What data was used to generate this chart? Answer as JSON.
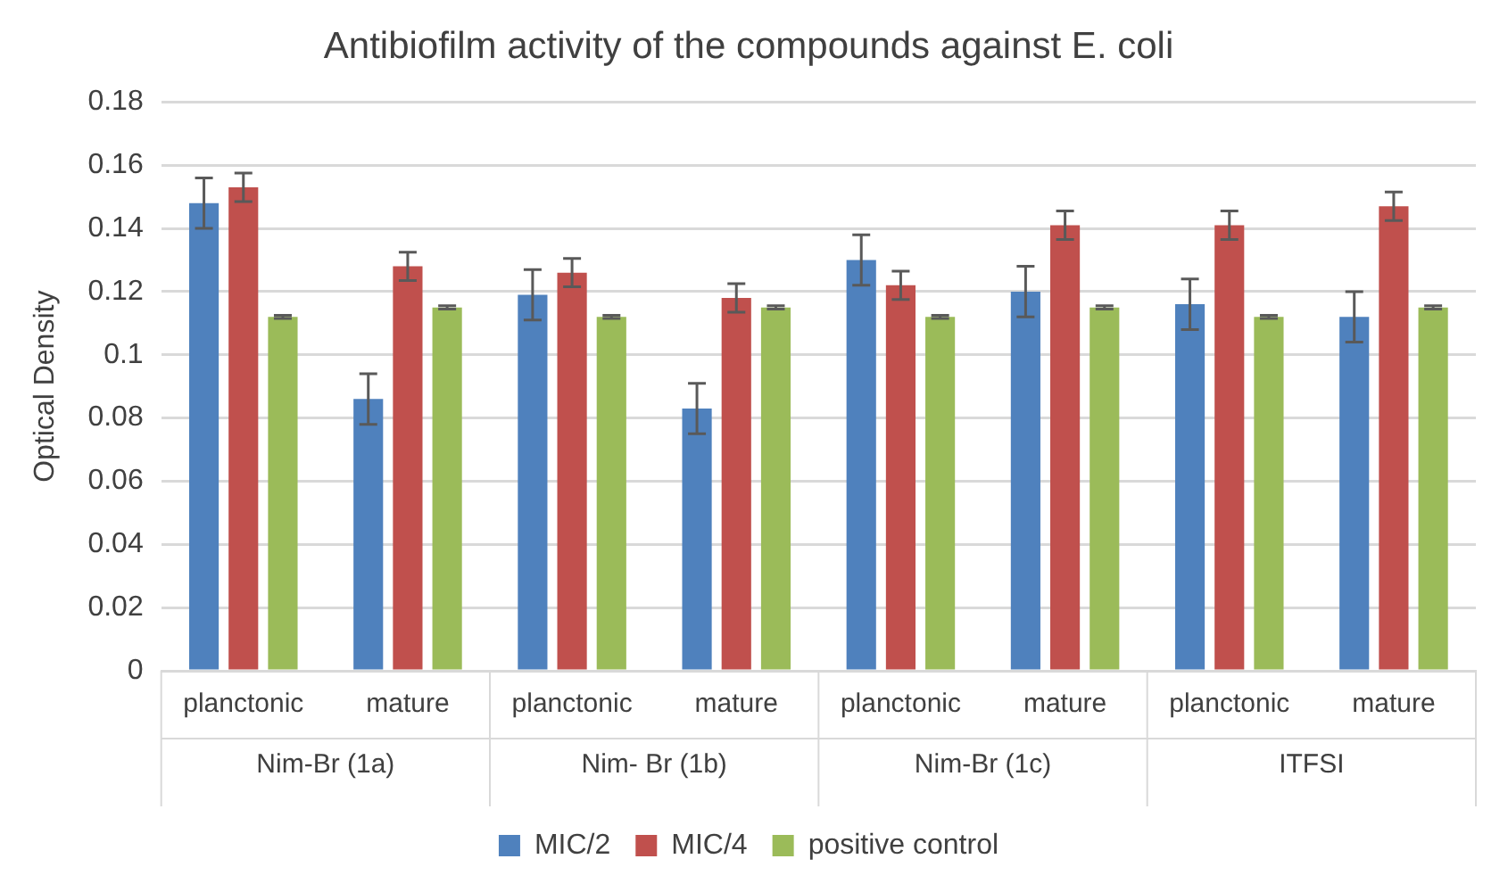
{
  "chart_data": {
    "type": "bar",
    "title": "Antibiofilm activity of the compounds against E. coli",
    "ylabel": "Optical Density",
    "categories": [
      "planctonic",
      "mature",
      "planctonic",
      "mature",
      "planctonic",
      "mature",
      "planctonic",
      "mature"
    ],
    "annotations": [
      "Nim-Br (1a)",
      "Nim- Br (1b)",
      "Nim-Br (1c)",
      "ITFSI"
    ],
    "series": [
      {
        "name": "MIC/2",
        "color": "#4f81bd",
        "values": [
          0.148,
          0.086,
          0.119,
          0.083,
          0.13,
          0.12,
          0.116,
          0.112
        ],
        "errors": [
          0.008,
          0.008,
          0.008,
          0.008,
          0.008,
          0.008,
          0.008,
          0.008
        ]
      },
      {
        "name": "MIC/4",
        "color": "#c0504d",
        "values": [
          0.153,
          0.128,
          0.126,
          0.118,
          0.122,
          0.141,
          0.141,
          0.147
        ],
        "errors": [
          0.0045,
          0.0045,
          0.0045,
          0.0045,
          0.0045,
          0.0045,
          0.0045,
          0.0045
        ]
      },
      {
        "name": "positive control",
        "color": "#9bbb59",
        "values": [
          0.112,
          0.115,
          0.112,
          0.115,
          0.112,
          0.115,
          0.112,
          0.115
        ],
        "errors": [
          0.0005,
          0.0005,
          0.0005,
          0.0005,
          0.0005,
          0.0005,
          0.0005,
          0.0005
        ]
      }
    ],
    "ylim": [
      0,
      0.18
    ],
    "yticks": [
      0,
      0.02,
      0.04,
      0.06,
      0.08,
      0.1,
      0.12,
      0.14,
      0.16,
      0.18
    ],
    "grid": "y",
    "legend": "bottom"
  }
}
